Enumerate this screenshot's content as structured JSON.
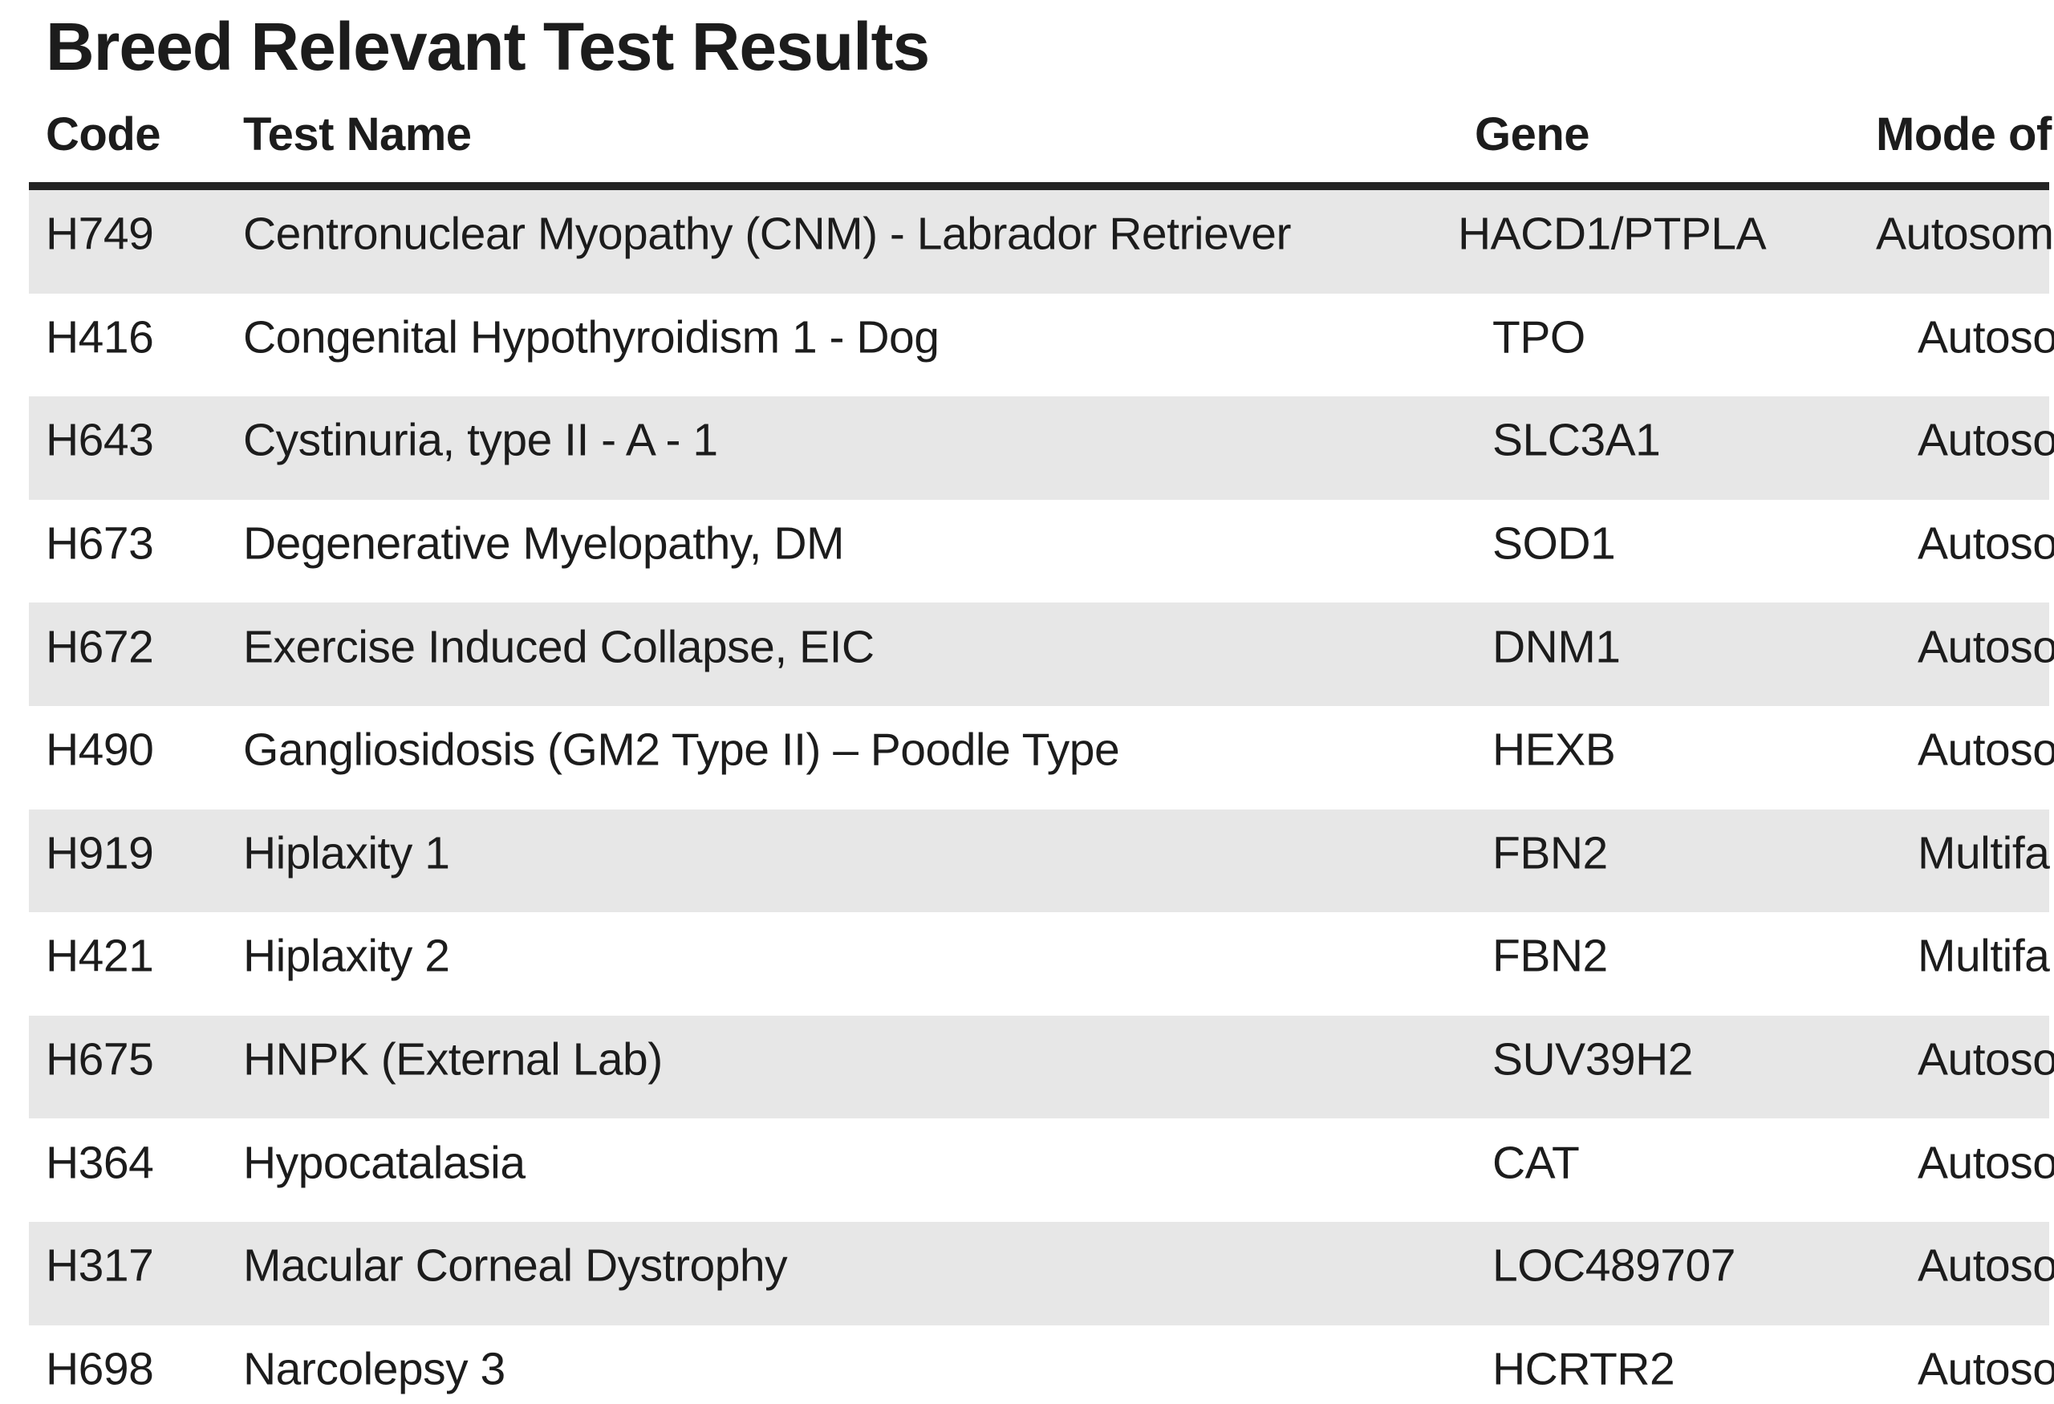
{
  "page": {
    "title": "Breed Relevant Test Results",
    "background_color": "#ffffff",
    "text_color": "#1c1c1c",
    "stripe_color": "#e7e7e7",
    "rule_color": "#242424"
  },
  "table": {
    "columns": {
      "code_label": "Code",
      "test_name_label": "Test Name",
      "gene_label": "Gene",
      "mode_label": "Mode of"
    },
    "mode_column_clipped_at_right_edge": true,
    "rows": [
      {
        "code": "H749",
        "test_name": "Centronuclear Myopathy (CNM) - Labrador Retriever",
        "gene": "HACD1/PTPLA",
        "mode": "Autosom",
        "shaded": true
      },
      {
        "code": "H416",
        "test_name": "Congenital Hypothyroidism 1 - Dog",
        "gene": "TPO",
        "mode": "Autoso",
        "shaded": false
      },
      {
        "code": "H643",
        "test_name": "Cystinuria, type II - A - 1",
        "gene": "SLC3A1",
        "mode": "Autoso",
        "shaded": true
      },
      {
        "code": "H673",
        "test_name": "Degenerative Myelopathy, DM",
        "gene": "SOD1",
        "mode": "Autoso",
        "shaded": false
      },
      {
        "code": "H672",
        "test_name": "Exercise Induced Collapse, EIC",
        "gene": "DNM1",
        "mode": "Autoso",
        "shaded": true
      },
      {
        "code": "H490",
        "test_name": "Gangliosidosis (GM2 Type II) – Poodle Type",
        "gene": "HEXB",
        "mode": "Autoso",
        "shaded": false
      },
      {
        "code": "H919",
        "test_name": "Hiplaxity 1",
        "gene": "FBN2",
        "mode": "Multifa",
        "shaded": true
      },
      {
        "code": "H421",
        "test_name": "Hiplaxity 2",
        "gene": "FBN2",
        "mode": "Multifa",
        "shaded": false
      },
      {
        "code": "H675",
        "test_name": "HNPK (External Lab)",
        "gene": "SUV39H2",
        "mode": "Autoso",
        "shaded": true
      },
      {
        "code": "H364",
        "test_name": "Hypocatalasia",
        "gene": "CAT",
        "mode": "Autoso",
        "shaded": false
      },
      {
        "code": "H317",
        "test_name": "Macular Corneal Dystrophy",
        "gene": "LOC489707",
        "mode": "Autoso",
        "shaded": true
      },
      {
        "code": "H698",
        "test_name": "Narcolepsy 3",
        "gene": "HCRTR2",
        "mode": "Autoso",
        "shaded": false
      }
    ]
  }
}
